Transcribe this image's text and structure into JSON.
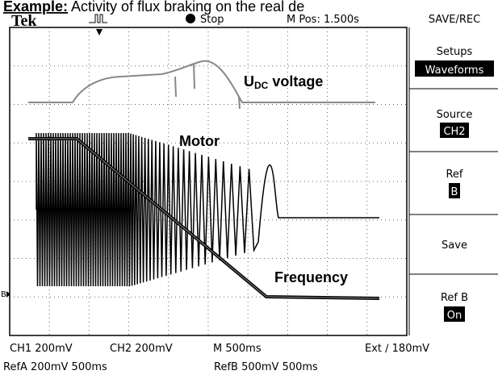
{
  "caption": {
    "label": "Example:",
    "text": " Activity of flux braking on the real de"
  },
  "header": {
    "brand": "Tek",
    "state": "Stop",
    "position": "M Pos: 1.500s",
    "menu_title": "SAVE/REC"
  },
  "menu": [
    {
      "label": "Setups",
      "value": "Waveforms"
    },
    {
      "label": "Source",
      "value": "CH2"
    },
    {
      "label": "Ref",
      "value": "B"
    },
    {
      "label": "Save"
    },
    {
      "label": "Ref B",
      "value": "On"
    }
  ],
  "annotations": {
    "voltage_u": "U",
    "voltage_sub": "DC",
    "voltage_text": " voltage",
    "motor": "Motor",
    "frequency": "Frequency",
    "ref_marker": "B"
  },
  "footer": {
    "ch1": "CH1  200mV",
    "ch2": "CH2  200mV",
    "timebase": "M 500ms",
    "trigger": "Ext ∕  180mV",
    "refa": "RefA 200mV 500ms",
    "refb": "RefB 500mV 500ms"
  }
}
